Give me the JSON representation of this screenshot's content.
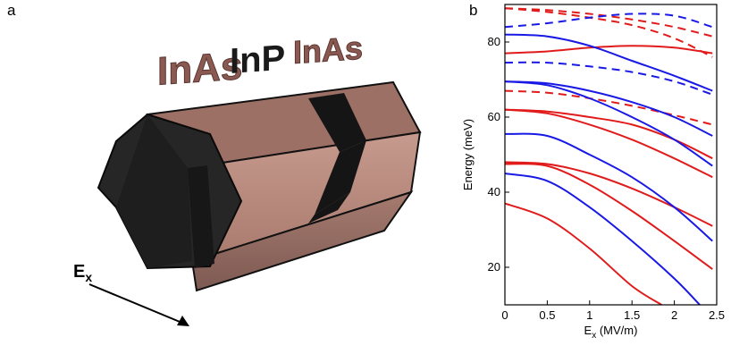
{
  "panel_a": {
    "label": "a",
    "materials": [
      "InAs",
      "InP",
      "InAs"
    ],
    "field_label": "E",
    "field_subscript": "x",
    "colors": {
      "inas": "#7a4a44",
      "inp": "#1a1a1a",
      "body_dark": "#2a2a2a",
      "body_light": "#b88a7e"
    }
  },
  "panel_b": {
    "label": "b",
    "chart_data": {
      "type": "line",
      "title": "",
      "xlabel_main": "E",
      "xlabel_sub": "x",
      "xlabel_unit": " (MV/m)",
      "ylabel": "Energy (meV)",
      "xlim": [
        0,
        2.5
      ],
      "ylim": [
        10,
        90
      ],
      "xticks": [
        0,
        0.5,
        1,
        1.5,
        2,
        2.5
      ],
      "xtick_labels": [
        "0",
        "0.5",
        "1",
        "1.5",
        "2",
        "2.5"
      ],
      "yticks": [
        20,
        40,
        60,
        80
      ],
      "ytick_labels": [
        "20",
        "40",
        "60",
        "80"
      ],
      "grid": false,
      "series": [
        {
          "color": "#e11b1b",
          "dash": false,
          "x": [
            0,
            0.5,
            1,
            1.5,
            1.85
          ],
          "y": [
            37,
            33,
            25,
            15,
            10
          ]
        },
        {
          "color": "#e11b1b",
          "dash": false,
          "x": [
            0,
            0.5,
            1,
            1.5,
            2,
            2.45
          ],
          "y": [
            47.5,
            47,
            42,
            35,
            27,
            19.5
          ]
        },
        {
          "color": "#e11b1b",
          "dash": false,
          "x": [
            0,
            0.5,
            1,
            1.5,
            2,
            2.45
          ],
          "y": [
            48,
            47.5,
            45,
            41,
            36,
            31
          ]
        },
        {
          "color": "#e11b1b",
          "dash": false,
          "x": [
            0,
            0.5,
            1,
            1.5,
            2,
            2.45
          ],
          "y": [
            62,
            61,
            58,
            54,
            49,
            44
          ]
        },
        {
          "color": "#e11b1b",
          "dash": false,
          "x": [
            0,
            0.5,
            1,
            1.5,
            2,
            2.45
          ],
          "y": [
            62,
            61.5,
            60,
            58,
            54,
            49
          ]
        },
        {
          "color": "#e11b1b",
          "dash": false,
          "x": [
            0,
            0.5,
            1,
            1.5,
            2,
            2.45
          ],
          "y": [
            77,
            77.5,
            78.5,
            79,
            78.5,
            77
          ]
        },
        {
          "color": "#e11b1b",
          "dash": true,
          "x": [
            0,
            0.5,
            1,
            1.5,
            2,
            2.45
          ],
          "y": [
            67,
            66.5,
            65,
            63,
            60.5,
            58
          ]
        },
        {
          "color": "#e11b1b",
          "dash": true,
          "x": [
            0,
            0.5,
            1,
            1.5,
            2,
            2.45
          ],
          "y": [
            89,
            88,
            86.5,
            84.5,
            81,
            76
          ]
        },
        {
          "color": "#e11b1b",
          "dash": true,
          "x": [
            0,
            0.5,
            1,
            1.5,
            2,
            2.45
          ],
          "y": [
            89,
            88.5,
            87.5,
            86,
            84,
            81.5
          ]
        },
        {
          "color": "#1919e6",
          "dash": false,
          "x": [
            0,
            0.5,
            1,
            1.5,
            2,
            2.3
          ],
          "y": [
            45,
            43,
            36,
            27,
            17,
            10
          ]
        },
        {
          "color": "#1919e6",
          "dash": false,
          "x": [
            0,
            0.5,
            1,
            1.5,
            2,
            2.45
          ],
          "y": [
            55.5,
            55,
            50,
            44,
            36,
            27
          ]
        },
        {
          "color": "#1919e6",
          "dash": false,
          "x": [
            0,
            0.5,
            1,
            1.5,
            2,
            2.45
          ],
          "y": [
            69.5,
            68.5,
            65,
            60,
            54,
            47
          ]
        },
        {
          "color": "#1919e6",
          "dash": false,
          "x": [
            0,
            0.5,
            1,
            1.5,
            2,
            2.45
          ],
          "y": [
            69.5,
            69,
            67,
            64,
            60,
            55
          ]
        },
        {
          "color": "#1919e6",
          "dash": false,
          "x": [
            0,
            0.5,
            1,
            1.5,
            2,
            2.45
          ],
          "y": [
            82,
            81.5,
            79,
            75,
            71,
            67
          ]
        },
        {
          "color": "#1919e6",
          "dash": true,
          "x": [
            0,
            0.5,
            1,
            1.5,
            2,
            2.45
          ],
          "y": [
            74.5,
            74.5,
            73.5,
            72,
            69.5,
            66
          ]
        },
        {
          "color": "#1919e6",
          "dash": true,
          "x": [
            0,
            0.5,
            1,
            1.5,
            2,
            2.45
          ],
          "y": [
            84,
            85,
            86.5,
            87.5,
            87,
            84
          ]
        }
      ]
    }
  }
}
